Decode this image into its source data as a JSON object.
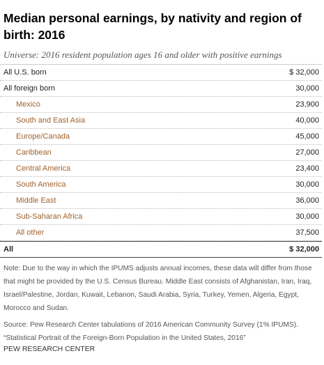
{
  "header": {
    "title": "Median personal earnings, by nativity and region of birth: 2016",
    "subtitle": "Universe: 2016 resident population ages 16 and older with positive earnings"
  },
  "table": {
    "rows": [
      {
        "label": "All U.S. born",
        "value": "$ 32,000"
      },
      {
        "label": "All foreign born",
        "value": "30,000",
        "children": [
          {
            "label": "Mexico",
            "value": "23,900"
          },
          {
            "label": "South and East Asia",
            "value": "40,000"
          },
          {
            "label": "Europe/Canada",
            "value": "45,000"
          },
          {
            "label": "Caribbean",
            "value": "27,000"
          },
          {
            "label": "Central America",
            "value": "23,400"
          },
          {
            "label": "South America",
            "value": "30,000"
          },
          {
            "label": "Middle East",
            "value": "36,000"
          },
          {
            "label": "Sub-Saharan Africa",
            "value": "30,000"
          },
          {
            "label": "All other",
            "value": "37,500"
          }
        ]
      }
    ],
    "total": {
      "label": "All",
      "value": "$ 32,000"
    }
  },
  "notes": {
    "note": "Note: Due to the way in which the IPUMS adjusts annual incomes, these data will differ from those that might be provided by the U.S. Census Bureau. Middle East consists of Afghanistan, Iran, Iraq, Israel/Palestine, Jordan, Kuwait, Lebanon, Saudi Arabia, Syria, Turkey, Yemen, Algeria, Egypt, Morocco and Sudan.",
    "source": [
      "Source: Pew Research Center tabulations of 2016 American Community Survey (1% IPUMS).",
      "“Statistical Portrait of the Foreign-Born Population in the United States, 2016”"
    ]
  },
  "footer": "PEW RESEARCH CENTER"
}
